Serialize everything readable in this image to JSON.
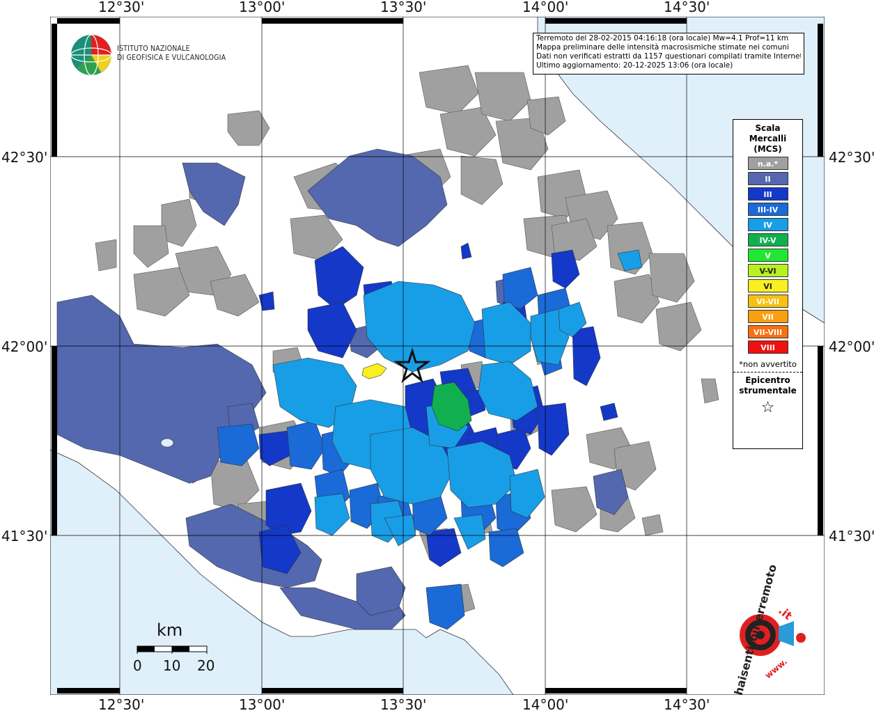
{
  "lon_ticks": [
    "12°30'",
    "13°00'",
    "13°30'",
    "14°00'",
    "14°30'"
  ],
  "lat_ticks": [
    "42°30'",
    "42°00'",
    "41°30'"
  ],
  "institute": {
    "line1": "ISTITUTO NAZIONALE",
    "line2": "DI GEOFISICA E VULCANOLOGIA"
  },
  "info": {
    "line1": "Terremoto del 28-02-2015 04:16:18 (ora locale) Mw=4.1 Prof=11 km",
    "line2": "Mappa preliminare delle intensità macrosismiche stimate nei comuni",
    "line3": "Dati non verificati estratti da 1157 questionari compilati tramite Internet.",
    "line4": "Ultimo aggiornamento: 20-12-2025 13:06 (ora locale)"
  },
  "legend": {
    "title1": "Scala",
    "title2": "Mercalli",
    "title3": "(MCS)",
    "classes": [
      {
        "label": "n.a.*",
        "color": "#a0a0a0"
      },
      {
        "label": "II",
        "color": "#5468b0"
      },
      {
        "label": "III",
        "color": "#1438c8"
      },
      {
        "label": "III-IV",
        "color": "#1a6ad8"
      },
      {
        "label": "IV",
        "color": "#189ee6"
      },
      {
        "label": "IV-V",
        "color": "#10b050"
      },
      {
        "label": "V",
        "color": "#20e830"
      },
      {
        "label": "V-VI",
        "color": "#b8f020"
      },
      {
        "label": "VI",
        "color": "#f8f020"
      },
      {
        "label": "VI-VII",
        "color": "#f8c010"
      },
      {
        "label": "VII",
        "color": "#f8a010"
      },
      {
        "label": "VII-VIII",
        "color": "#f87010"
      },
      {
        "label": "VIII",
        "color": "#f01010"
      }
    ],
    "note": "*non avvertito",
    "epicentre1": "Epicentro",
    "epicentre2": "strumentale",
    "star": "☆"
  },
  "scale": {
    "unit": "km",
    "labels": [
      "0",
      "10",
      "20"
    ]
  },
  "logo": {
    "text1": "haisentitoilterremoto",
    "text2": ".it",
    "text3": "www."
  },
  "colors": {
    "sea": "#dff0fb",
    "land": "#ffffff",
    "na": "#a0a0a0",
    "ii": "#5468b0",
    "iii": "#1438c8",
    "iii_iv": "#1a6ad8",
    "iv": "#189ee6",
    "iv_v": "#10b050",
    "vi": "#f8f020"
  }
}
